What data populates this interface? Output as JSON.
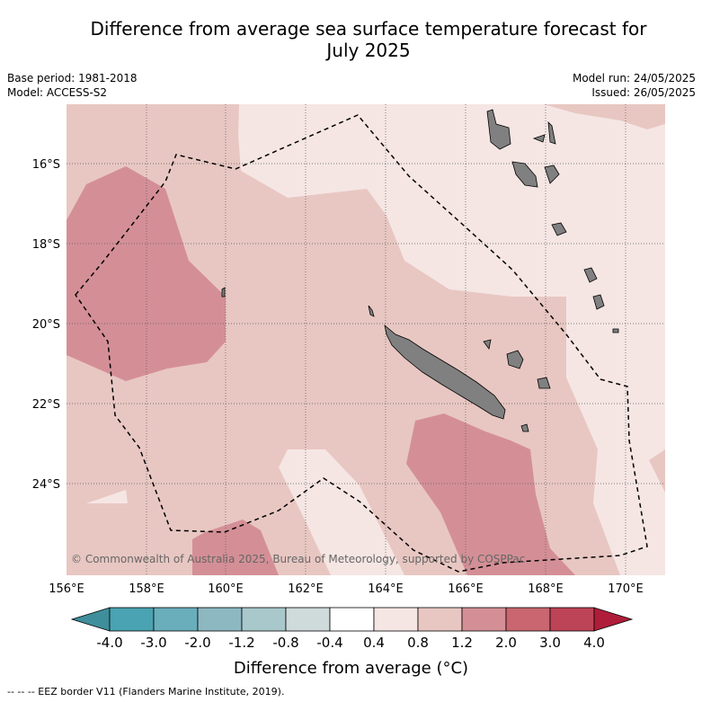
{
  "title_line1": "Difference from average sea surface temperature forecast for",
  "title_line2": "July 2025",
  "base_period": "Base period: 1981-2018",
  "model": "Model: ACCESS-S2",
  "model_run": "Model run: 24/05/2025",
  "issued": "Issued: 26/05/2025",
  "copyright": "© Commonwealth of Australia 2025, Bureau of Meteorology, supported by COSPPac",
  "lat_labels": [
    "16°S",
    "18°S",
    "20°S",
    "22°S",
    "24°S"
  ],
  "lon_labels": [
    "156°E",
    "158°E",
    "160°E",
    "162°E",
    "164°E",
    "166°E",
    "168°E",
    "170°E"
  ],
  "colorbar": {
    "title": "Difference from average (°C)",
    "labels": [
      "-4.0",
      "-3.0",
      "-2.0",
      "-1.2",
      "-0.8",
      "-0.4",
      "0.4",
      "0.8",
      "1.2",
      "2.0",
      "3.0",
      "4.0"
    ],
    "colors": [
      "#3f8e9b",
      "#4aa3b2",
      "#6aaebb",
      "#8db8c2",
      "#a9c8cc",
      "#cfdadb",
      "#ffffff",
      "#f5e6e4",
      "#e8c7c2",
      "#d48f96",
      "#c96670",
      "#bd4456",
      "#b01d3b"
    ]
  },
  "eez_note": "--  --  -- EEZ border V11 (Flanders Marine Institute, 2019).",
  "map_colors": {
    "anomaly_0_4_to_0_8": "#f5e6e4",
    "anomaly_0_8_to_1_2": "#e8c7c2",
    "anomaly_1_2_to_2_0": "#d48f96",
    "land": "#808080"
  }
}
